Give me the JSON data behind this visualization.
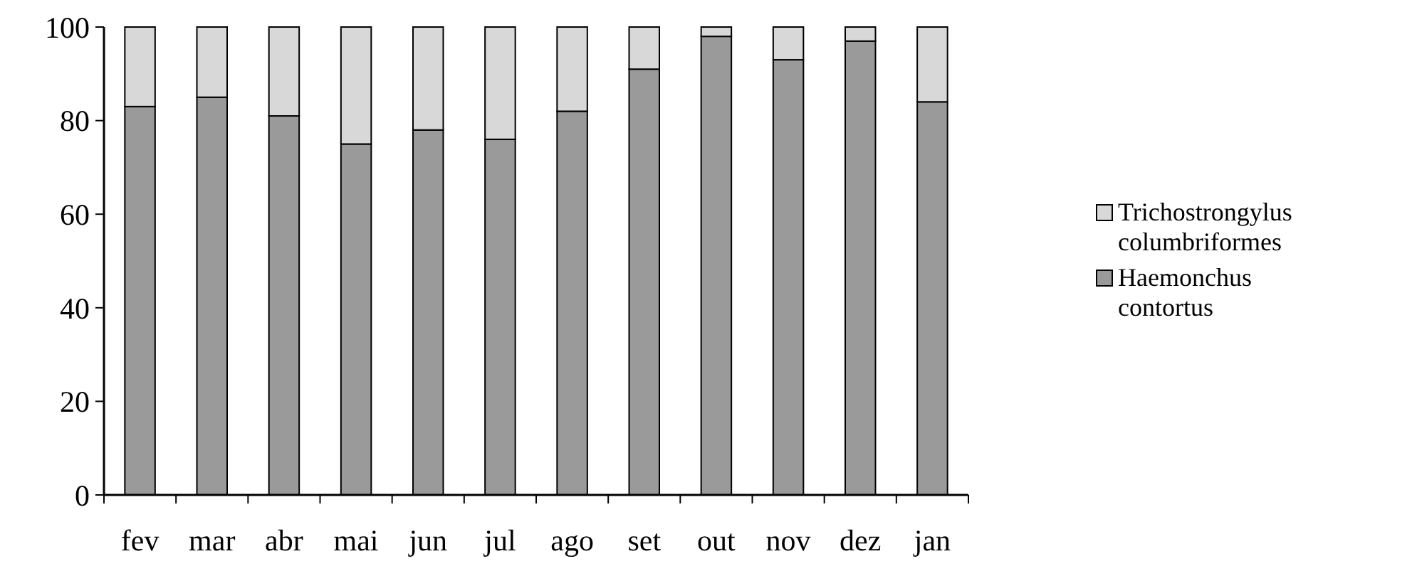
{
  "chart_data": {
    "type": "bar",
    "stacked": true,
    "categories": [
      "fev",
      "mar",
      "abr",
      "mai",
      "jun",
      "jul",
      "ago",
      "set",
      "out",
      "nov",
      "dez",
      "jan"
    ],
    "series": [
      {
        "name": "Haemonchus contortus",
        "color": "#9a9a9a",
        "values": [
          83,
          85,
          81,
          75,
          78,
          76,
          82,
          91,
          98,
          93,
          97,
          84
        ]
      },
      {
        "name": "Trichostrongylus columbriformes",
        "color": "#d8d8d8",
        "values": [
          17,
          15,
          19,
          25,
          22,
          24,
          18,
          9,
          2,
          7,
          3,
          16
        ]
      }
    ],
    "ylim": [
      0,
      100
    ],
    "yticks": [
      0,
      20,
      40,
      60,
      80,
      100
    ],
    "grid": false,
    "legend": "right"
  }
}
